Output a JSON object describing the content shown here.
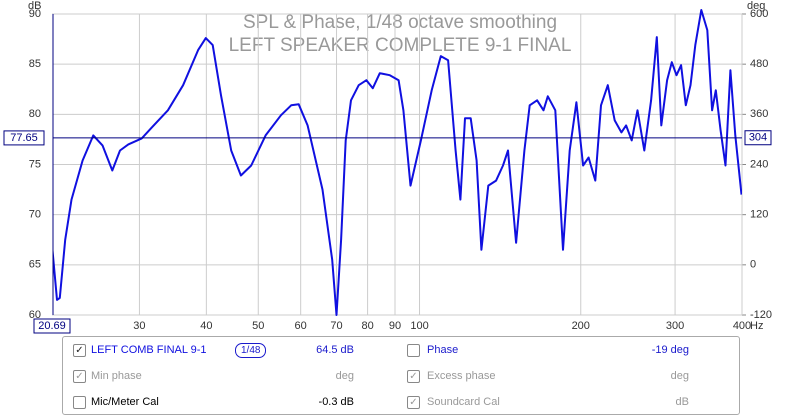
{
  "chart_data": {
    "type": "line",
    "title": "SPL & Phase, 1/48 octave smoothing",
    "subtitle": "LEFT SPEAKER COMPLETE 9-1 FINAL",
    "y_label": "dB",
    "y2_label": "deg",
    "x_label": "Hz",
    "xscale": "log",
    "grid": true,
    "xlim": [
      20.69,
      400
    ],
    "ylim": [
      60,
      90
    ],
    "y2lim": [
      -120,
      600
    ],
    "xticks": [
      30,
      40,
      50,
      60,
      70,
      80,
      90,
      100,
      200,
      300,
      400
    ],
    "yticks": [
      60,
      65,
      70,
      75,
      80,
      85,
      90
    ],
    "y2ticks": [
      -120,
      0,
      120,
      240,
      360,
      480,
      600
    ],
    "cursor": {
      "x": 20.69,
      "y": 77.65,
      "y2": 304,
      "color": "#000080"
    },
    "series": [
      {
        "name": "LEFT COMB FINAL 9-1",
        "color": "#1010e0",
        "x": [
          20.5,
          21.05,
          21.3,
          21.8,
          22.4,
          23.5,
          24.6,
          25.6,
          26.7,
          27.6,
          28.6,
          30.3,
          31.9,
          33.9,
          36.2,
          38.6,
          39.9,
          41.1,
          42.6,
          44.5,
          46.4,
          48.5,
          51.6,
          55.1,
          57.6,
          59.5,
          61.8,
          65.9,
          68.7,
          70.0,
          71.4,
          72.8,
          74.5,
          77.0,
          79.6,
          81.8,
          84.3,
          88.0,
          91.4,
          93.3,
          96.2,
          100.6,
          105.4,
          109.6,
          113.1,
          116.8,
          119.2,
          121.6,
          124.6,
          127.8,
          130.5,
          134.4,
          139.0,
          143.2,
          146.3,
          151.5,
          157.0,
          160.6,
          165.8,
          170.4,
          173.6,
          179.3,
          185.3,
          190.7,
          196.3,
          202.0,
          206.9,
          212.9,
          218.2,
          224.7,
          231.4,
          238.2,
          243.0,
          249.0,
          255.2,
          262.8,
          270.6,
          277.3,
          282.8,
          289.9,
          295.8,
          301.8,
          307.9,
          314.2,
          320.6,
          327.2,
          335.8,
          344.6,
          351.8,
          357.4,
          364.9,
          372.6,
          380.5,
          388.7,
          399.1
        ],
        "values": [
          68.2,
          61.5,
          61.7,
          67.5,
          71.5,
          75.4,
          77.9,
          76.9,
          74.4,
          76.4,
          77.0,
          77.6,
          78.9,
          80.4,
          82.9,
          86.4,
          87.6,
          86.9,
          81.9,
          76.4,
          73.9,
          74.9,
          77.9,
          79.9,
          80.9,
          81.0,
          78.9,
          72.5,
          65.5,
          60.0,
          67.5,
          77.4,
          81.4,
          82.9,
          83.4,
          82.6,
          84.1,
          83.9,
          83.4,
          80.4,
          72.9,
          77.4,
          82.4,
          85.8,
          85.4,
          76.4,
          71.5,
          79.6,
          79.6,
          75.4,
          66.5,
          72.9,
          73.4,
          74.9,
          76.4,
          67.2,
          76.4,
          80.9,
          81.4,
          80.4,
          81.8,
          80.4,
          66.5,
          76.4,
          81.2,
          74.9,
          75.7,
          73.4,
          80.9,
          82.9,
          79.4,
          78.2,
          78.9,
          77.4,
          80.4,
          76.4,
          81.4,
          87.7,
          78.9,
          83.4,
          85.2,
          83.9,
          84.9,
          80.9,
          82.9,
          86.9,
          90.4,
          88.4,
          80.4,
          82.4,
          78.4,
          74.9,
          84.4,
          77.9,
          72.0
        ]
      }
    ]
  },
  "panel": {
    "smoothing": "1/48",
    "left": [
      {
        "checked": true,
        "value": "64.5 dB",
        "color": "#1a1acc"
      },
      {
        "checked": true,
        "label": "Min phase",
        "value": "deg",
        "disabled": true
      },
      {
        "checked": false,
        "label": "Mic/Meter Cal",
        "value": "-0.3 dB"
      }
    ],
    "right": [
      {
        "checked": false,
        "label": "Phase",
        "value": "-19 deg",
        "color": "#1a1acc"
      },
      {
        "checked": true,
        "label": "Excess phase",
        "value": "deg",
        "disabled": true
      },
      {
        "checked": true,
        "label": "Soundcard Cal",
        "value": "dB",
        "disabled": true
      }
    ]
  }
}
